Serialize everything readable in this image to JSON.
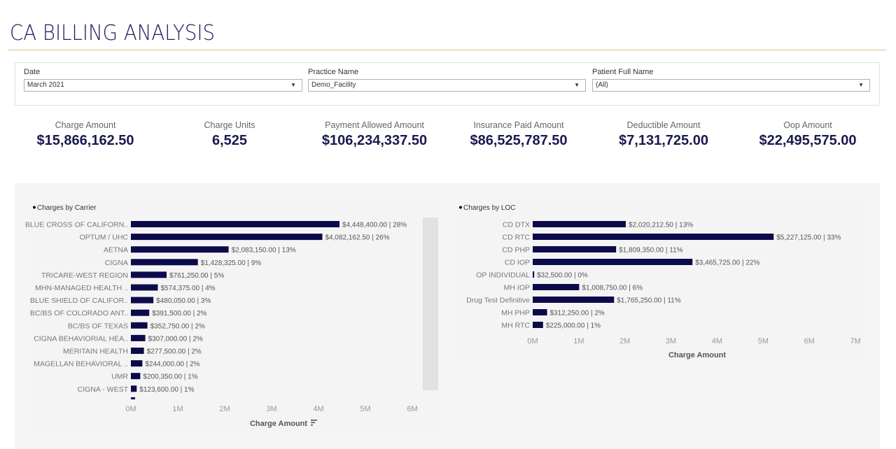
{
  "header": {
    "title": "CA BILLING ANALYSIS"
  },
  "filters": [
    {
      "label": "Date",
      "value": "March 2021"
    },
    {
      "label": "Practice Name",
      "value": "Demo_Facility"
    },
    {
      "label": "Patient Full Name",
      "value": "(All)"
    }
  ],
  "kpis": [
    {
      "label": "Charge Amount",
      "value": "$15,866,162.50"
    },
    {
      "label": "Charge Units",
      "value": "6,525"
    },
    {
      "label": "Payment Allowed Amount",
      "value": "$106,234,337.50"
    },
    {
      "label": "Insurance Paid Amount",
      "value": "$86,525,787.50"
    },
    {
      "label": "Deductible Amount",
      "value": "$7,131,725.00"
    },
    {
      "label": "Oop Amount",
      "value": "$22,495,575.00"
    }
  ],
  "colors": {
    "bar": "#0b0b4b",
    "title": "#1a1f5c",
    "rule": "#d8c48a"
  },
  "chart_data": [
    {
      "type": "bar",
      "orientation": "horizontal",
      "title": "Charges by Carrier",
      "xlabel": "Charge Amount",
      "ylabel": "",
      "xlim": [
        0,
        6000000
      ],
      "ticks": [
        "0M",
        "1M",
        "2M",
        "3M",
        "4M",
        "5M",
        "6M"
      ],
      "tick_values": [
        0,
        1000000,
        2000000,
        3000000,
        4000000,
        5000000,
        6000000
      ],
      "sort_icon": "sort-descending-icon",
      "categories": [
        "BLUE CROSS OF CALIFORN..",
        "OPTUM / UHC",
        "AETNA",
        "CIGNA",
        "TRICARE-WEST REGION",
        "MHN-MANAGED HEALTH ..",
        "BLUE SHIELD OF CALIFOR..",
        "BC/BS OF COLORADO ANT..",
        "BC/BS OF TEXAS",
        "CIGNA BEHAVIORIAL HEA..",
        "MERITAIN HEALTH",
        "MAGELLAN BEHAVIORAL ..",
        "UMR",
        "CIGNA - WEST"
      ],
      "values": [
        4448400,
        4082162.5,
        2083150,
        1428325,
        761250,
        574375,
        480050,
        391500,
        352750,
        307000,
        277500,
        244000,
        200350,
        123600
      ],
      "labels": [
        "$4,448,400.00 | 28%",
        "$4,082,162.50 | 26%",
        "$2,083,150.00 | 13%",
        "$1,428,325.00 | 9%",
        "$761,250.00 | 5%",
        "$574,375.00 | 4%",
        "$480,050.00 | 3%",
        "$391,500.00 | 2%",
        "$352,750.00 | 2%",
        "$307,000.00 | 2%",
        "$277,500.00 | 2%",
        "$244,000.00 | 2%",
        "$200,350.00 | 1%",
        "$123,600.00 | 1%"
      ],
      "grid": false
    },
    {
      "type": "bar",
      "orientation": "horizontal",
      "title": "Charges by LOC",
      "xlabel": "Charge Amount",
      "ylabel": "",
      "xlim": [
        0,
        7000000
      ],
      "ticks": [
        "0M",
        "1M",
        "2M",
        "3M",
        "4M",
        "5M",
        "6M",
        "7M"
      ],
      "tick_values": [
        0,
        1000000,
        2000000,
        3000000,
        4000000,
        5000000,
        6000000,
        7000000
      ],
      "categories": [
        "CD DTX",
        "CD RTC",
        "CD PHP",
        "CD IOP",
        "OP INDIVIDUAL",
        "MH IOP",
        "Drug Test Definitive",
        "MH PHP",
        "MH RTC"
      ],
      "values": [
        2020212.5,
        5227125,
        1809350,
        3465725,
        32500,
        1008750,
        1765250,
        312250,
        225000
      ],
      "labels": [
        "$2,020,212.50 | 13%",
        "$5,227,125.00 | 33%",
        "$1,809,350.00 | 11%",
        "$3,465,725.00 | 22%",
        "$32,500.00 | 0%",
        "$1,008,750.00 | 6%",
        "$1,765,250.00 | 11%",
        "$312,250.00 | 2%",
        "$225,000.00 | 1%"
      ],
      "grid": false
    }
  ]
}
